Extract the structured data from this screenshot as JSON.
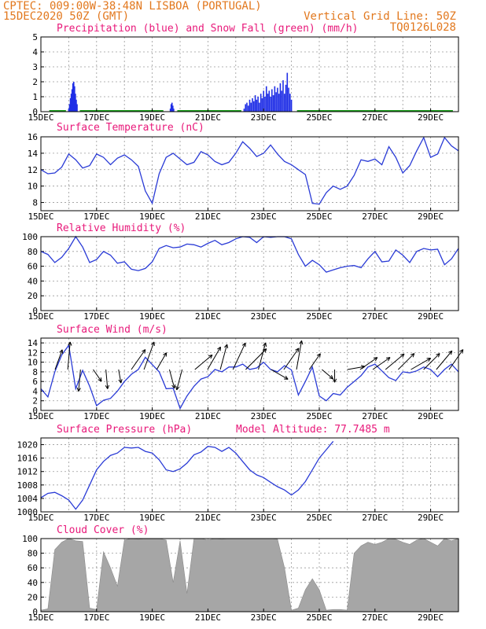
{
  "header": {
    "line1": "CPTEC:  009:00W-38:48N  LISBOA (PORTUGAL)",
    "line2": "15DEC2020 50Z (GMT)",
    "grid_note": "Vertical Grid Line: 50Z",
    "code": "TQ0126L028"
  },
  "x_labels": [
    "15DEC",
    "17DEC",
    "19DEC",
    "21DEC",
    "23DEC",
    "25DEC",
    "27DEC",
    "29DEC"
  ],
  "colors": {
    "header": "#e2781e",
    "title": "#e8197a",
    "precip": "#1f2ee6",
    "snow": "#1fa01f",
    "line": "#2a3bd6",
    "cloud": "#a6a6a6"
  },
  "chart_data": [
    {
      "type": "bar",
      "title": "Precipitation (blue) and Snow Fall (green) (mm/h)",
      "ylim": [
        0,
        5
      ],
      "yticks": [
        "0",
        "1",
        "2",
        "3",
        "4",
        "5"
      ],
      "x_range_days": [
        0,
        15
      ],
      "series": [
        {
          "name": "Precipitation",
          "color": "#1f2ee6",
          "points": [
            [
              1.0,
              0.2
            ],
            [
              1.03,
              0.5
            ],
            [
              1.06,
              0.9
            ],
            [
              1.09,
              1.2
            ],
            [
              1.12,
              1.5
            ],
            [
              1.15,
              1.9
            ],
            [
              1.18,
              2.0
            ],
            [
              1.21,
              1.7
            ],
            [
              1.24,
              1.2
            ],
            [
              1.27,
              0.8
            ],
            [
              1.3,
              0.5
            ],
            [
              4.65,
              0.2
            ],
            [
              4.68,
              0.5
            ],
            [
              4.71,
              0.6
            ],
            [
              4.74,
              0.4
            ],
            [
              4.77,
              0.2
            ],
            [
              7.3,
              0.2
            ],
            [
              7.35,
              0.5
            ],
            [
              7.4,
              0.6
            ],
            [
              7.45,
              0.4
            ],
            [
              7.5,
              0.8
            ],
            [
              7.55,
              0.6
            ],
            [
              7.6,
              0.9
            ],
            [
              7.65,
              0.7
            ],
            [
              7.7,
              1.1
            ],
            [
              7.75,
              0.8
            ],
            [
              7.8,
              1.0
            ],
            [
              7.85,
              0.6
            ],
            [
              7.9,
              1.2
            ],
            [
              7.95,
              0.9
            ],
            [
              8.0,
              1.4
            ],
            [
              8.05,
              1.0
            ],
            [
              8.1,
              1.7
            ],
            [
              8.15,
              1.2
            ],
            [
              8.2,
              1.4
            ],
            [
              8.25,
              1.0
            ],
            [
              8.3,
              1.5
            ],
            [
              8.35,
              1.1
            ],
            [
              8.4,
              1.7
            ],
            [
              8.45,
              1.3
            ],
            [
              8.5,
              1.6
            ],
            [
              8.55,
              1.2
            ],
            [
              8.6,
              1.9
            ],
            [
              8.65,
              1.4
            ],
            [
              8.7,
              2.1
            ],
            [
              8.75,
              1.2
            ],
            [
              8.8,
              1.8
            ],
            [
              8.85,
              2.6
            ],
            [
              8.9,
              1.6
            ],
            [
              8.95,
              1.2
            ],
            [
              9.0,
              0.8
            ]
          ]
        },
        {
          "name": "Snow Fall",
          "color": "#1fa01f",
          "points": []
        }
      ]
    },
    {
      "type": "line",
      "title": "Surface Temperature (nC)",
      "ylim": [
        7,
        16
      ],
      "yticks": [
        "8",
        "10",
        "12",
        "14",
        "16"
      ],
      "x_range_days": [
        0,
        15
      ],
      "x": [
        0,
        0.25,
        0.5,
        0.75,
        1,
        1.25,
        1.5,
        1.75,
        2,
        2.25,
        2.5,
        2.75,
        3,
        3.25,
        3.5,
        3.75,
        4,
        4.25,
        4.5,
        4.75,
        5,
        5.25,
        5.5,
        5.75,
        6,
        6.25,
        6.5,
        6.75,
        7,
        7.25,
        7.5,
        7.75,
        8,
        8.25,
        8.5,
        8.75,
        9,
        9.25,
        9.5,
        9.75,
        10,
        10.25,
        10.5,
        10.75,
        11,
        11.25,
        11.5,
        11.75,
        12,
        12.25,
        12.5,
        12.75,
        13,
        13.25,
        13.5,
        13.75,
        14,
        14.25,
        14.5,
        14.75,
        15
      ],
      "values": [
        12.0,
        11.5,
        11.6,
        12.3,
        13.9,
        13.2,
        12.2,
        12.5,
        13.9,
        13.5,
        12.6,
        13.4,
        13.8,
        13.2,
        12.4,
        9.4,
        7.9,
        11.5,
        13.5,
        14.0,
        13.3,
        12.6,
        12.9,
        14.2,
        13.8,
        13.0,
        12.6,
        12.9,
        14.0,
        15.4,
        14.6,
        13.6,
        14.0,
        15.0,
        13.9,
        13.0,
        12.6,
        12.0,
        11.4,
        7.9,
        7.8,
        9.2,
        10.0,
        9.6,
        10.0,
        11.3,
        13.2,
        13.0,
        13.3,
        12.6,
        14.8,
        13.5,
        11.6,
        12.5,
        14.3,
        15.9,
        13.5,
        13.9,
        15.9,
        14.9,
        14.3
      ]
    },
    {
      "type": "line",
      "title": "Relative Humidity (%)",
      "ylim": [
        0,
        100
      ],
      "yticks": [
        "0",
        "20",
        "40",
        "60",
        "80",
        "100"
      ],
      "x_range_days": [
        0,
        15
      ],
      "x": [
        0,
        0.25,
        0.5,
        0.75,
        1,
        1.25,
        1.5,
        1.75,
        2,
        2.25,
        2.5,
        2.75,
        3,
        3.25,
        3.5,
        3.75,
        4,
        4.25,
        4.5,
        4.75,
        5,
        5.25,
        5.5,
        5.75,
        6,
        6.25,
        6.5,
        6.75,
        7,
        7.25,
        7.5,
        7.75,
        8,
        8.25,
        8.5,
        8.75,
        9,
        9.25,
        9.5,
        9.75,
        10,
        10.25,
        10.5,
        10.75,
        11,
        11.25,
        11.5,
        11.75,
        12,
        12.25,
        12.5,
        12.75,
        13,
        13.25,
        13.5,
        13.75,
        14,
        14.25,
        14.5,
        14.75,
        15
      ],
      "values": [
        80,
        76,
        65,
        72,
        84,
        100,
        86,
        65,
        69,
        80,
        75,
        64,
        66,
        56,
        54,
        57,
        66,
        84,
        88,
        85,
        86,
        90,
        89,
        86,
        91,
        95,
        89,
        92,
        97,
        100,
        99,
        92,
        100,
        99,
        100,
        100,
        97,
        76,
        60,
        68,
        62,
        52,
        55,
        58,
        60,
        61,
        58,
        70,
        80,
        66,
        67,
        82,
        75,
        65,
        80,
        84,
        82,
        83,
        62,
        70,
        84
      ]
    },
    {
      "type": "line",
      "title": "Surface Wind (m/s)",
      "ylim": [
        0,
        15
      ],
      "yticks": [
        "0",
        "2",
        "4",
        "6",
        "8",
        "10",
        "12",
        "14"
      ],
      "x_range_days": [
        0,
        15
      ],
      "x": [
        0,
        0.25,
        0.5,
        0.75,
        1,
        1.25,
        1.5,
        1.75,
        2,
        2.25,
        2.5,
        2.75,
        3,
        3.25,
        3.5,
        3.75,
        4,
        4.25,
        4.5,
        4.75,
        5,
        5.25,
        5.5,
        5.75,
        6,
        6.25,
        6.5,
        6.75,
        7,
        7.25,
        7.5,
        7.75,
        8,
        8.25,
        8.5,
        8.75,
        9,
        9.25,
        9.5,
        9.75,
        10,
        10.25,
        10.5,
        10.75,
        11,
        11.25,
        11.5,
        11.75,
        12,
        12.25,
        12.5,
        12.75,
        13,
        13.25,
        13.5,
        13.75,
        14,
        14.25,
        14.5,
        14.75,
        15
      ],
      "values": [
        4.5,
        2.8,
        8.0,
        11.5,
        13.5,
        4.5,
        8.3,
        5.0,
        1.0,
        2.1,
        2.5,
        4.0,
        6.0,
        7.5,
        8.5,
        11.0,
        9.5,
        8.0,
        4.5,
        4.6,
        0.4,
        3.0,
        5.0,
        6.5,
        7.0,
        8.5,
        8.0,
        9.0,
        9.0,
        9.6,
        8.5,
        8.8,
        10.0,
        8.5,
        8.0,
        9.3,
        8.4,
        3.2,
        6.0,
        9.0,
        3.0,
        2.0,
        3.5,
        3.2,
        4.8,
        6.0,
        7.2,
        9.0,
        9.6,
        8.2,
        6.8,
        6.2,
        8.0,
        7.8,
        8.2,
        9.0,
        8.5,
        7.0,
        8.5,
        9.6,
        8.0
      ],
      "arrows_speed": [
        8,
        12,
        8.5,
        4,
        7,
        3.5,
        10,
        13,
        7,
        7,
        8,
        9,
        11,
        11,
        13,
        13,
        12,
        7,
        11,
        13,
        7,
        4,
        3,
        6,
        8,
        8,
        10,
        9,
        9,
        9,
        10,
        10
      ],
      "arrows_dir_deg": [
        20,
        5,
        185,
        145,
        175,
        170,
        35,
        20,
        30,
        165,
        195,
        50,
        30,
        15,
        25,
        45,
        15,
        120,
        35,
        10,
        35,
        130,
        180,
        80,
        55,
        55,
        50,
        45,
        60,
        45,
        40,
        35
      ]
    },
    {
      "type": "line",
      "title": "Surface Pressure (hPa)",
      "subtitle": "Model Altitude: 77.7485 m",
      "ylim": [
        1000,
        1022
      ],
      "yticks": [
        "1000",
        "1004",
        "1008",
        "1012",
        "1016",
        "1020"
      ],
      "x_range_days": [
        0,
        15
      ],
      "x": [
        0,
        0.25,
        0.5,
        0.75,
        1,
        1.25,
        1.5,
        1.75,
        2,
        2.25,
        2.5,
        2.75,
        3,
        3.25,
        3.5,
        3.75,
        4,
        4.25,
        4.5,
        4.75,
        5,
        5.25,
        5.5,
        5.75,
        6,
        6.25,
        6.5,
        6.75,
        7,
        7.25,
        7.5,
        7.75,
        8,
        8.25,
        8.5,
        8.75,
        9,
        9.25,
        9.5,
        9.75,
        10,
        10.25,
        10.5
      ],
      "values": [
        1004.2,
        1005.5,
        1005.8,
        1004.8,
        1003.5,
        1000.8,
        1003.5,
        1008.0,
        1012.5,
        1015.0,
        1016.8,
        1017.5,
        1019.2,
        1019.0,
        1019.2,
        1018.0,
        1017.5,
        1015.5,
        1012.5,
        1012.0,
        1012.8,
        1014.5,
        1017.0,
        1017.8,
        1019.5,
        1019.2,
        1018.0,
        1019.2,
        1017.5,
        1015.0,
        1012.5,
        1011.0,
        1010.2,
        1008.8,
        1007.5,
        1006.5,
        1005.0,
        1006.5,
        1009.0,
        1012.5,
        1016.0,
        1018.5,
        1021.0
      ]
    },
    {
      "type": "area",
      "title": "Cloud Cover (%)",
      "ylim": [
        0,
        100
      ],
      "yticks": [
        "0",
        "20",
        "40",
        "60",
        "80",
        "100"
      ],
      "x_range_days": [
        0,
        15
      ],
      "x": [
        0,
        0.25,
        0.5,
        0.75,
        1,
        1.25,
        1.5,
        1.75,
        2,
        2.25,
        2.5,
        2.75,
        3,
        3.25,
        3.5,
        3.75,
        4,
        4.25,
        4.5,
        4.75,
        5,
        5.25,
        5.5,
        5.75,
        6,
        6.25,
        6.5,
        6.75,
        7,
        7.25,
        7.5,
        7.75,
        8,
        8.25,
        8.5,
        8.75,
        9,
        9.25,
        9.5,
        9.75,
        10,
        10.25,
        10.5,
        10.75,
        11,
        11.25,
        11.5,
        11.75,
        12,
        12.25,
        12.5,
        12.75,
        13,
        13.25,
        13.5,
        13.75,
        14,
        14.25,
        14.5,
        14.75,
        15
      ],
      "values": [
        2,
        4,
        85,
        95,
        100,
        97,
        96,
        5,
        3,
        82,
        60,
        35,
        98,
        100,
        99,
        100,
        100,
        100,
        98,
        40,
        97,
        25,
        100,
        100,
        98,
        100,
        99,
        100,
        100,
        100,
        100,
        100,
        100,
        100,
        99,
        60,
        2,
        5,
        30,
        45,
        30,
        2,
        3,
        3,
        2,
        80,
        90,
        95,
        92,
        95,
        100,
        99,
        95,
        92,
        98,
        100,
        95,
        90,
        100,
        97,
        100
      ]
    }
  ]
}
